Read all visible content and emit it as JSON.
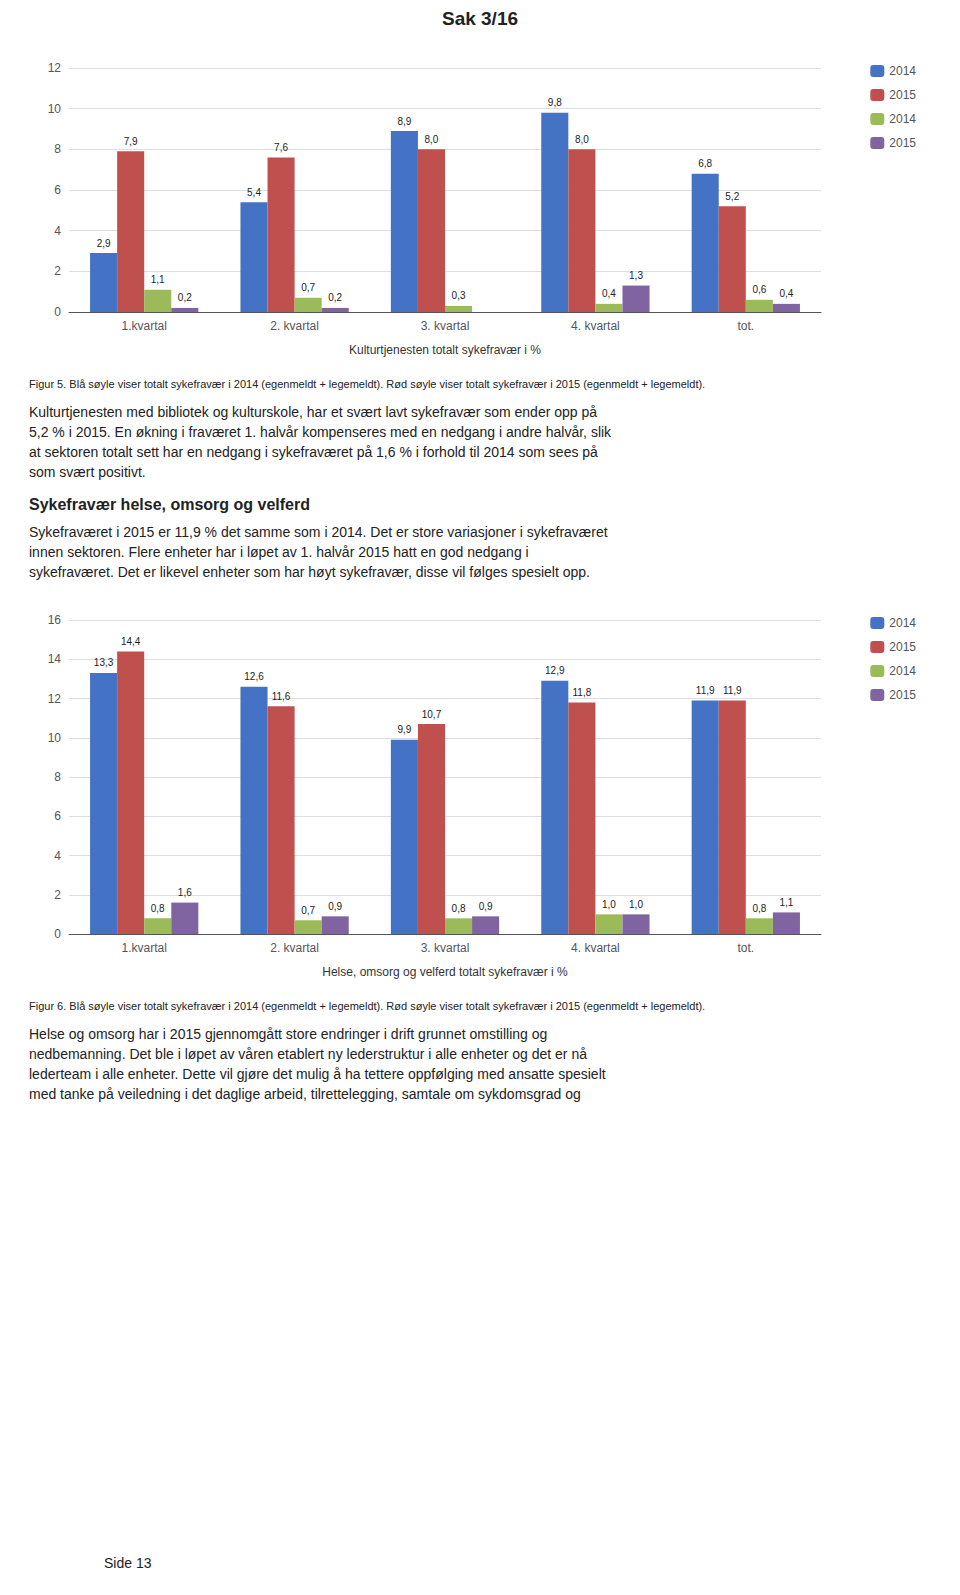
{
  "page_title": "Sak 3/16",
  "chart_data": [
    {
      "type": "bar",
      "categories": [
        "1.kvartal",
        "2. kvartal",
        "3. kvartal",
        "4. kvartal",
        "tot."
      ],
      "series": [
        {
          "name": "2014",
          "color": "#4472C4",
          "values": [
            2.9,
            5.4,
            8.9,
            9.8,
            6.8
          ],
          "value_labels": [
            "2,9",
            "5,4",
            "8,9",
            "9,8",
            "6,8"
          ]
        },
        {
          "name": "2015",
          "color": "#C0504D",
          "values": [
            7.9,
            7.6,
            8.0,
            8.0,
            5.2
          ],
          "value_labels": [
            "7,9",
            "7,6",
            "8,0",
            "8,0",
            "5,2"
          ]
        },
        {
          "name": "2014",
          "color": "#9BBB59",
          "values": [
            1.1,
            0.7,
            0.3,
            0.4,
            0.6
          ],
          "value_labels": [
            "1,1",
            "0,7",
            "0,3",
            "0,4",
            "0,6"
          ]
        },
        {
          "name": "2015",
          "color": "#8064A2",
          "values": [
            0.2,
            0.2,
            0.0,
            1.3,
            0.4
          ],
          "value_labels": [
            "0,2",
            "0,2",
            null,
            "1,3",
            "0,4"
          ]
        }
      ],
      "xlabel": "Kulturtjenesten totalt sykefravær i %",
      "ylim": [
        0,
        12
      ],
      "yticks": [
        0,
        2,
        4,
        6,
        8,
        10,
        12
      ],
      "grid": true,
      "legend": "upper right",
      "data_labels": true,
      "caption": "Figur 5. Blå søyle viser totalt sykefravær i 2014 (egenmeldt + legemeldt). Rød søyle viser totalt sykefravær i 2015 (egenmeldt + legemeldt)."
    },
    {
      "type": "bar",
      "categories": [
        "1.kvartal",
        "2. kvartal",
        "3. kvartal",
        "4. kvartal",
        "tot."
      ],
      "series": [
        {
          "name": "2014",
          "color": "#4472C4",
          "values": [
            13.3,
            12.6,
            9.9,
            12.9,
            11.9
          ],
          "value_labels": [
            "13,3",
            "12,6",
            "9,9",
            "12,9",
            "11,9"
          ]
        },
        {
          "name": "2015",
          "color": "#C0504D",
          "values": [
            14.4,
            11.6,
            10.7,
            11.8,
            11.9
          ],
          "value_labels": [
            "14,4",
            "11,6",
            "10,7",
            "11,8",
            "11,9"
          ]
        },
        {
          "name": "2014",
          "color": "#9BBB59",
          "values": [
            0.8,
            0.7,
            0.8,
            1.0,
            0.8
          ],
          "value_labels": [
            "0,8",
            "0,7",
            "0,8",
            "1,0",
            "0,8"
          ]
        },
        {
          "name": "2015",
          "color": "#8064A2",
          "values": [
            1.6,
            0.9,
            0.9,
            1.0,
            1.1
          ],
          "value_labels": [
            "1,6",
            "0,9",
            "0,9",
            "1,0",
            "1,1"
          ]
        }
      ],
      "xlabel": "Helse, omsorg og velferd totalt sykefravær i %",
      "ylim": [
        0,
        16
      ],
      "yticks": [
        0,
        2,
        4,
        6,
        8,
        10,
        12,
        14,
        16
      ],
      "grid": true,
      "legend": "upper right",
      "data_labels": true,
      "caption": "Figur 6. Blå søyle viser totalt sykefravær i 2014 (egenmeldt + legemeldt). Rød søyle viser totalt sykefravær i 2015 (egenmeldt + legemeldt)."
    }
  ],
  "text1_lines": [
    "Kulturtjenesten med bibliotek og kulturskole, har et svært lavt sykefravær som ender opp på",
    "5,2 % i 2015. En økning i fraværet 1. halvår kompenseres med en nedgang i andre halvår, slik",
    "at sektoren totalt sett har en nedgang i sykefraværet på 1,6 % i forhold til 2014 som sees på",
    "som svært positivt."
  ],
  "heading2": "Sykefravær helse, omsorg og velferd",
  "text2_lines": [
    "Sykefraværet i 2015 er 11,9 % det samme som i 2014. Det er store variasjoner i sykefraværet",
    "innen sektoren. Flere enheter har i løpet av 1. halvår 2015 hatt en god nedgang i",
    "sykefraværet. Det er likevel enheter som har høyt sykefravær, disse vil følges spesielt opp."
  ],
  "text3_lines": [
    "Helse og omsorg har i 2015 gjennomgått store endringer i drift grunnet omstilling og",
    "nedbemanning. Det ble i løpet av våren etablert ny lederstruktur i alle enheter og det er nå",
    "lederteam i alle enheter. Dette vil gjøre det mulig å ha tettere oppfølging med ansatte spesielt",
    "med tanke på veiledning i det daglige arbeid, tilrettelegging, samtale om sykdomsgrad og"
  ],
  "footer": "Side 13"
}
